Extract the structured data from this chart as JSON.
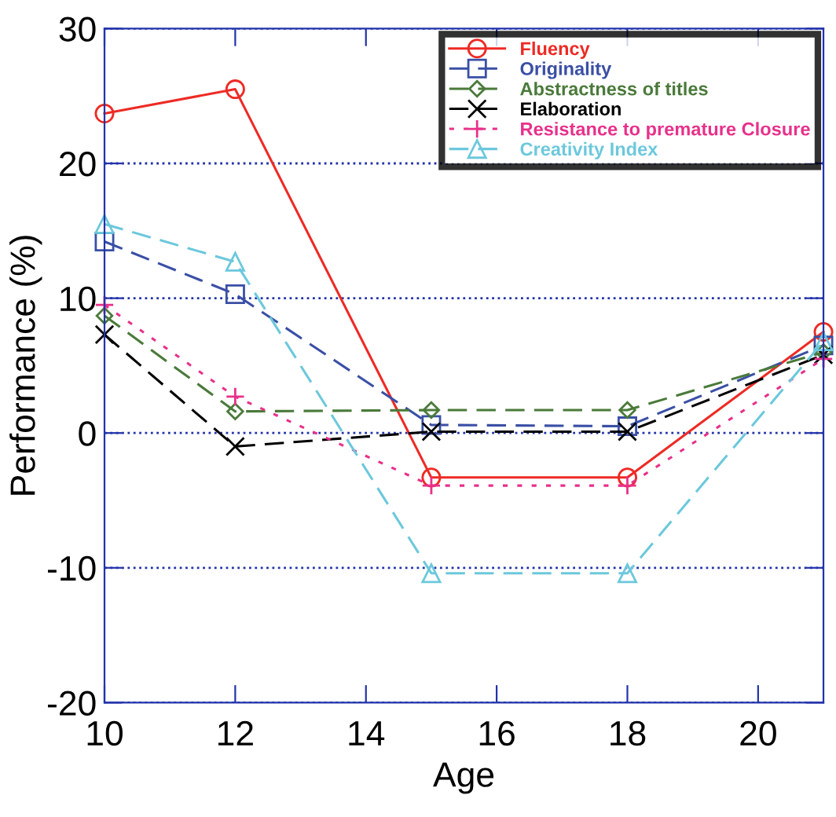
{
  "chart_data": {
    "type": "line",
    "xlabel": "Age",
    "ylabel": "Performance (%)",
    "x": [
      10,
      12,
      15,
      18,
      21
    ],
    "series": [
      {
        "name": "Fluency",
        "color": "#ee2a24",
        "values": [
          23.7,
          25.5,
          -3.3,
          -3.3,
          7.5
        ],
        "marker": "circle",
        "line_style": "solid"
      },
      {
        "name": "Originality",
        "color": "#3a4fa5",
        "values": [
          14.2,
          10.3,
          0.6,
          0.5,
          6.5
        ],
        "marker": "square",
        "line_style": "dashed"
      },
      {
        "name": "Abstractness of titles",
        "color": "#4a7a3a",
        "values": [
          8.7,
          1.6,
          1.7,
          1.7,
          6.0
        ],
        "marker": "diamond",
        "line_style": "dashed"
      },
      {
        "name": "Elaboration",
        "color": "#000000",
        "values": [
          7.3,
          -1.0,
          0.1,
          0.1,
          5.8
        ],
        "marker": "cross",
        "line_style": "dashed"
      },
      {
        "name": "Resistance to premature Closure",
        "color": "#e8308a",
        "values": [
          9.5,
          2.7,
          -3.9,
          -3.9,
          5.5
        ],
        "marker": "plus",
        "line_style": "dotted"
      },
      {
        "name": "Creativity Index",
        "color": "#6cc8dc",
        "values": [
          15.5,
          12.7,
          -10.4,
          -10.4,
          6.8
        ],
        "marker": "triangle",
        "line_style": "dashed"
      }
    ],
    "xlim": [
      10,
      21
    ],
    "xticks": [
      10,
      12,
      14,
      16,
      18,
      20
    ],
    "ylim": [
      -20,
      30
    ],
    "yticks": [
      -20,
      -10,
      0,
      10,
      20,
      30
    ],
    "grid": "y",
    "legend": "top right"
  }
}
